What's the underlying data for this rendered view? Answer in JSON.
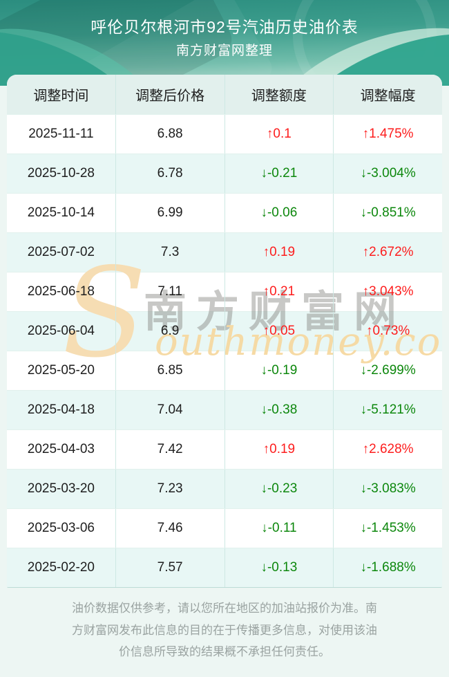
{
  "chart_data": {
    "type": "table",
    "title": "呼伦贝尔根河市92号汽油历史油价表",
    "subtitle": "南方财富网整理",
    "columns": [
      "调整时间",
      "调整后价格",
      "调整额度",
      "调整幅度"
    ],
    "rows": [
      {
        "date": "2025-11-11",
        "price": "6.88",
        "change": "↑0.1",
        "pct": "↑1.475%",
        "direction": "up"
      },
      {
        "date": "2025-10-28",
        "price": "6.78",
        "change": "↓-0.21",
        "pct": "↓-3.004%",
        "direction": "down"
      },
      {
        "date": "2025-10-14",
        "price": "6.99",
        "change": "↓-0.06",
        "pct": "↓-0.851%",
        "direction": "down"
      },
      {
        "date": "2025-07-02",
        "price": "7.3",
        "change": "↑0.19",
        "pct": "↑2.672%",
        "direction": "up"
      },
      {
        "date": "2025-06-18",
        "price": "7.11",
        "change": "↑0.21",
        "pct": "↑3.043%",
        "direction": "up"
      },
      {
        "date": "2025-06-04",
        "price": "6.9",
        "change": "↑0.05",
        "pct": "↑0.73%",
        "direction": "up"
      },
      {
        "date": "2025-05-20",
        "price": "6.85",
        "change": "↓-0.19",
        "pct": "↓-2.699%",
        "direction": "down"
      },
      {
        "date": "2025-04-18",
        "price": "7.04",
        "change": "↓-0.38",
        "pct": "↓-5.121%",
        "direction": "down"
      },
      {
        "date": "2025-04-03",
        "price": "7.42",
        "change": "↑0.19",
        "pct": "↑2.628%",
        "direction": "up"
      },
      {
        "date": "2025-03-20",
        "price": "7.23",
        "change": "↓-0.23",
        "pct": "↓-3.083%",
        "direction": "down"
      },
      {
        "date": "2025-03-06",
        "price": "7.46",
        "change": "↓-0.11",
        "pct": "↓-1.453%",
        "direction": "down"
      },
      {
        "date": "2025-02-20",
        "price": "7.57",
        "change": "↓-0.13",
        "pct": "↓-1.688%",
        "direction": "down"
      }
    ]
  },
  "watermark": {
    "initial": "S",
    "cn": "南方财富网",
    "en": "outhmoney.com"
  },
  "footer": {
    "disclaimer": "油价数据仅供参考，请以您所在地区的加油站报价为准。南方财富网发布此信息的目的在于传播更多信息，对使用该油价信息所导致的结果概不承担任何责任。"
  },
  "colors": {
    "up_red": "#fd1d1d",
    "down_green": "#0c870c",
    "banner_teal_top": "#2b8d7f",
    "banner_teal_bottom": "#c6e5da",
    "row_alt_tint": "#e8f7f5",
    "header_row_bg": "#e2f0ed",
    "watermark_tan": "#f6ddb3"
  }
}
